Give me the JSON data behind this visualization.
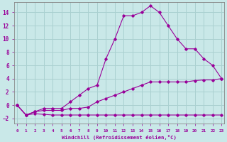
{
  "xlabel": "Windchill (Refroidissement éolien,°C)",
  "background_color": "#c9e8e8",
  "grid_color": "#aad0d0",
  "line_color": "#990099",
  "series": [
    {
      "x": [
        0,
        1,
        2,
        3,
        4,
        5,
        6,
        7,
        8,
        9,
        10,
        11,
        12,
        13,
        14,
        15,
        16,
        17,
        18,
        19,
        20,
        21,
        22,
        23
      ],
      "y": [
        0.0,
        -1.5,
        -1.3,
        -1.4,
        -1.5,
        -1.5,
        -1.5,
        -1.5,
        -1.5,
        -1.5,
        -1.5,
        -1.5,
        -1.5,
        -1.5,
        -1.5,
        -1.5,
        -1.5,
        -1.5,
        -1.5,
        -1.5,
        -1.5,
        -1.5,
        -1.5,
        -1.5
      ]
    },
    {
      "x": [
        0,
        1,
        2,
        3,
        4,
        5,
        6,
        7,
        8,
        9,
        10,
        11,
        12,
        13,
        14,
        15,
        16,
        17,
        18,
        19,
        20,
        21,
        22,
        23
      ],
      "y": [
        0.0,
        -1.5,
        -1.0,
        -0.8,
        -0.8,
        -0.8,
        -0.5,
        -0.5,
        -0.3,
        0.5,
        1.0,
        1.5,
        2.0,
        2.5,
        3.0,
        3.5,
        3.5,
        3.5,
        3.5,
        3.5,
        3.7,
        3.8,
        3.8,
        4.0
      ]
    },
    {
      "x": [
        0,
        1,
        2,
        3,
        4,
        5,
        6,
        7,
        8,
        9,
        10,
        11,
        12,
        13,
        14,
        15,
        16,
        17,
        18,
        19,
        20,
        21,
        22,
        23
      ],
      "y": [
        0.0,
        -1.5,
        -1.0,
        -0.5,
        -0.5,
        -0.5,
        0.5,
        1.5,
        2.5,
        3.0,
        7.0,
        10.0,
        13.5,
        13.5,
        14.0,
        15.0,
        14.0,
        12.0,
        10.0,
        8.5,
        8.5,
        7.0,
        6.0,
        4.0
      ]
    }
  ],
  "xlim": [
    -0.3,
    23.3
  ],
  "ylim": [
    -2.8,
    15.5
  ],
  "yticks": [
    -2,
    0,
    2,
    4,
    6,
    8,
    10,
    12,
    14
  ],
  "xticks": [
    0,
    1,
    2,
    3,
    4,
    5,
    6,
    7,
    8,
    9,
    10,
    11,
    12,
    13,
    14,
    15,
    16,
    17,
    18,
    19,
    20,
    21,
    22,
    23
  ]
}
